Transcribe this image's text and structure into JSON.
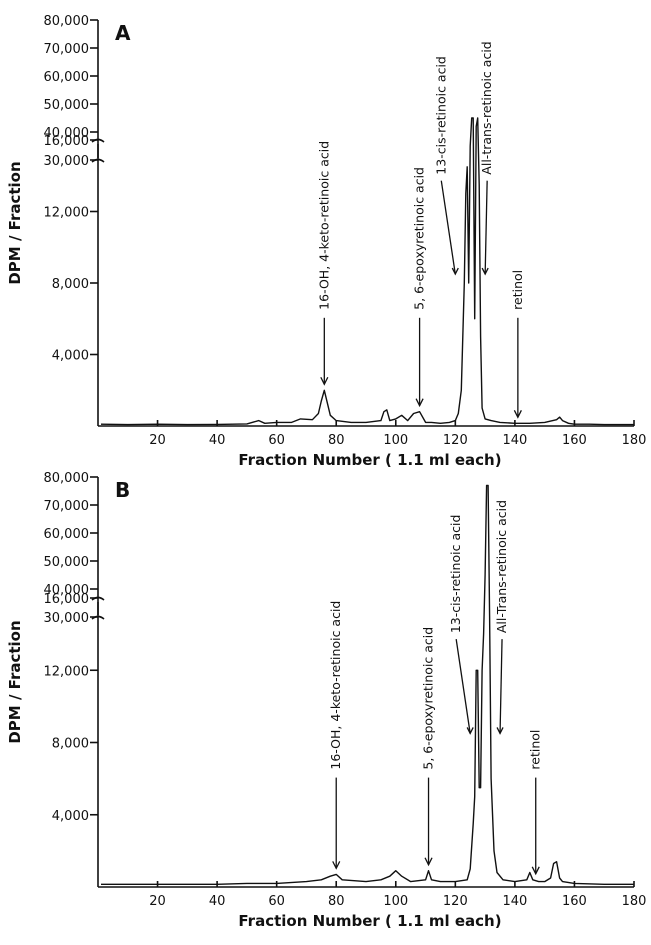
{
  "chart_data": [
    {
      "type": "line",
      "panel_label": "A",
      "xlabel": "Fraction  Number ( 1.1 ml each)",
      "ylabel": "DPM / Fraction",
      "xlim": [
        0,
        180
      ],
      "x_ticks": [
        20,
        40,
        60,
        80,
        100,
        120,
        140,
        160,
        180
      ],
      "y_ticks_lower": [
        4000,
        8000,
        12000,
        16000
      ],
      "y_ticks_lower_labels": [
        "4,000",
        "8,000",
        "12,000",
        "16,000"
      ],
      "y_ticks_upper": [
        30000,
        40000,
        50000,
        60000,
        70000,
        80000
      ],
      "y_ticks_upper_labels": [
        "30,000",
        "40,000",
        "50,000",
        "60,000",
        "70,000",
        "80,000"
      ],
      "axis_break": "between 16,000 and 30,000",
      "series": [
        {
          "x": [
            1,
            10,
            20,
            30,
            40,
            50,
            54,
            56,
            60,
            65,
            68,
            72,
            74,
            75,
            76,
            77,
            78,
            80,
            85,
            90,
            95,
            96,
            97,
            98,
            100,
            102,
            104,
            106,
            108,
            110,
            112,
            115,
            118,
            120,
            121,
            122,
            123,
            123.5,
            124,
            124.5,
            125,
            125.5,
            126,
            126.5,
            127,
            127.5,
            128,
            128.5,
            129,
            130,
            132,
            135,
            140,
            145,
            150,
            154,
            155,
            156,
            158,
            160,
            165,
            170,
            175,
            180
          ],
          "y": [
            100,
            80,
            100,
            80,
            90,
            120,
            300,
            150,
            200,
            200,
            400,
            350,
            700,
            1400,
            2000,
            1300,
            600,
            300,
            200,
            200,
            300,
            800,
            900,
            300,
            400,
            600,
            300,
            700,
            800,
            200,
            200,
            150,
            200,
            300,
            700,
            2000,
            8000,
            13000,
            14500,
            8000,
            35000,
            45000,
            45000,
            6000,
            42000,
            45000,
            13500,
            5000,
            1000,
            400,
            300,
            200,
            150,
            150,
            200,
            350,
            500,
            300,
            150,
            100,
            100,
            80,
            80,
            80
          ]
        }
      ],
      "annotations": [
        {
          "text": "16-OH, 4-keto-retinoic acid",
          "x": 76
        },
        {
          "text": "5, 6-epoxyretinoic acid",
          "x": 108
        },
        {
          "text": "13-cis-retinoic acid",
          "x": 122
        },
        {
          "text": "All-trans-retinoic acid",
          "x": 128
        },
        {
          "text": "retinol",
          "x": 141
        }
      ]
    },
    {
      "type": "line",
      "panel_label": "B",
      "xlabel": "Fraction  Number ( 1.1 ml each)",
      "ylabel": "DPM / Fraction",
      "xlim": [
        0,
        180
      ],
      "x_ticks": [
        20,
        40,
        60,
        80,
        100,
        120,
        140,
        160,
        180
      ],
      "y_ticks_lower": [
        4000,
        8000,
        12000,
        16000
      ],
      "y_ticks_lower_labels": [
        "4,000",
        "8,000",
        "12,000",
        "16,000"
      ],
      "y_ticks_upper": [
        30000,
        40000,
        50000,
        60000,
        70000,
        80000
      ],
      "y_ticks_upper_labels": [
        "30,000",
        "40,000",
        "50,000",
        "60,000",
        "70,000",
        "80,000"
      ],
      "axis_break": "between 16,000 and 30,000",
      "series": [
        {
          "x": [
            1,
            10,
            20,
            30,
            40,
            50,
            60,
            70,
            75,
            78,
            80,
            82,
            90,
            95,
            98,
            100,
            102,
            105,
            110,
            111,
            112,
            115,
            120,
            124,
            125,
            126,
            126.5,
            127,
            127.5,
            128,
            128.5,
            129,
            129.5,
            130,
            130.5,
            131,
            131.5,
            132,
            133,
            134,
            136,
            140,
            144,
            145,
            146,
            148,
            150,
            152,
            153,
            154,
            155,
            156,
            160,
            170,
            180
          ],
          "y": [
            150,
            150,
            150,
            150,
            150,
            200,
            200,
            300,
            400,
            600,
            700,
            400,
            300,
            400,
            600,
            900,
            600,
            300,
            400,
            900,
            400,
            300,
            300,
            400,
            1000,
            3500,
            5000,
            12000,
            12000,
            5500,
            5500,
            12000,
            14000,
            45000,
            77000,
            77000,
            15000,
            6000,
            2000,
            800,
            400,
            300,
            400,
            800,
            400,
            300,
            300,
            500,
            1300,
            1400,
            500,
            300,
            200,
            150,
            150
          ]
        }
      ],
      "annotations": [
        {
          "text": "16-OH, 4-keto-retinoic acid",
          "x": 80
        },
        {
          "text": "5, 6-epoxyretinoic acid",
          "x": 111
        },
        {
          "text": "13-cis-retinoic acid",
          "x": 127
        },
        {
          "text": "All-Trans-retinoic acid",
          "x": 133
        },
        {
          "text": "retinol",
          "x": 147
        }
      ]
    }
  ]
}
